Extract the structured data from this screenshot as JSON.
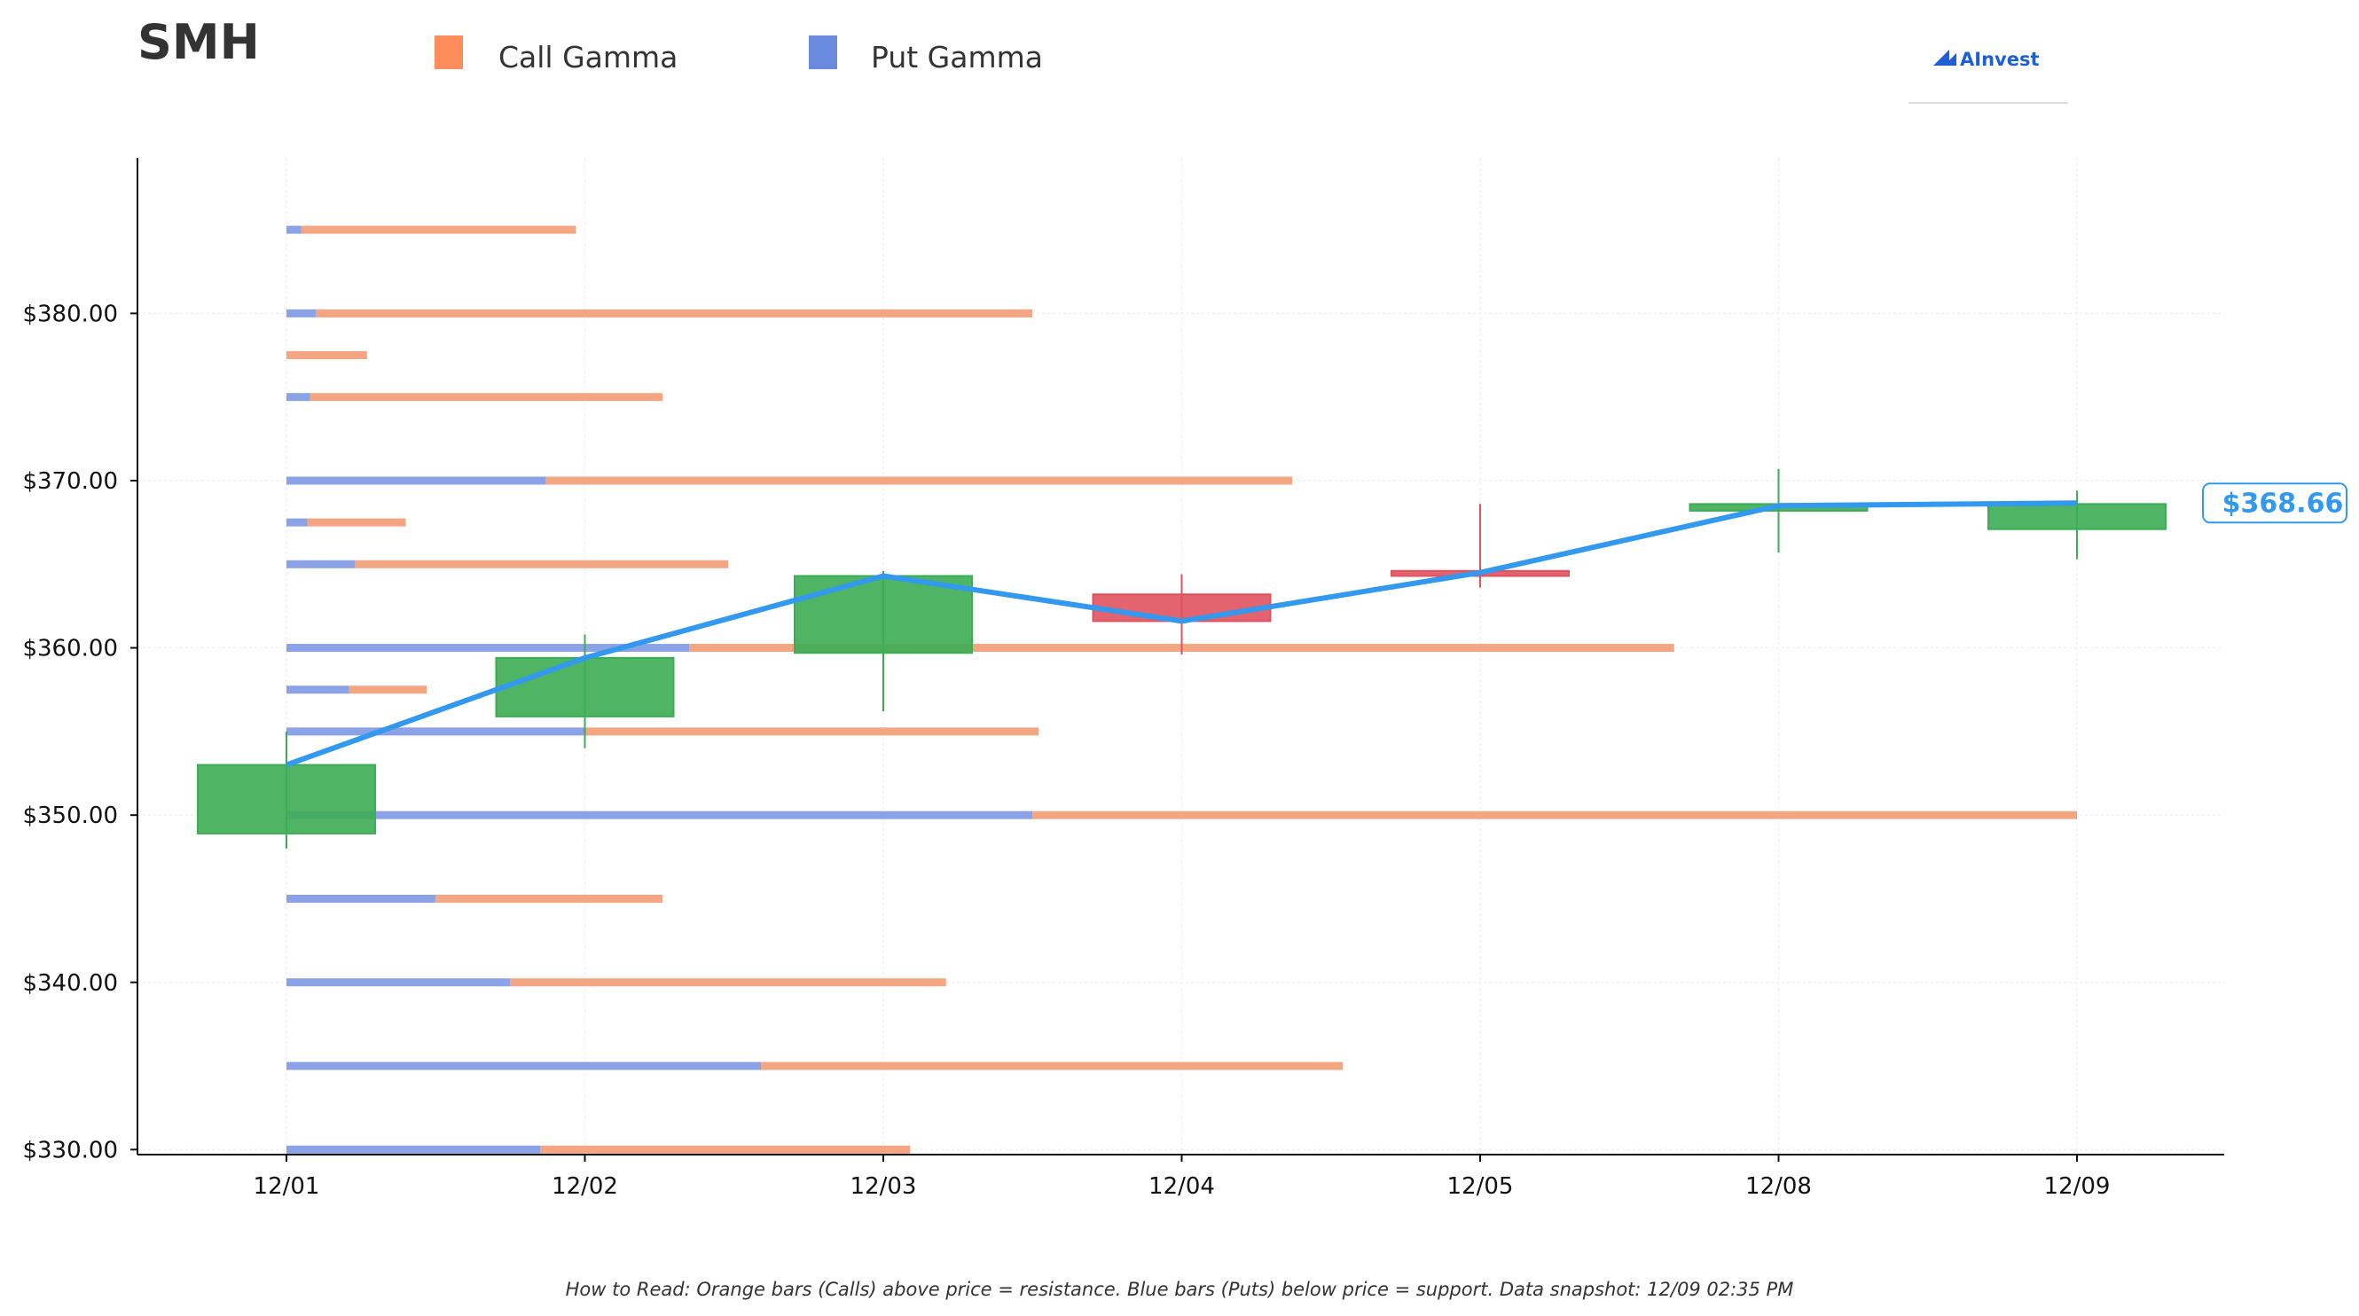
{
  "header": {
    "ticker": "SMH",
    "legend": [
      {
        "label": "Call Gamma",
        "color": "#ff8c5a"
      },
      {
        "label": "Put Gamma",
        "color": "#6b8be0"
      }
    ],
    "brand": "AInvest"
  },
  "footer": {
    "note": "How to Read: Orange bars (Calls) above price = resistance. Blue bars (Puts) below price = support. Data snapshot: 12/09 02:35 PM"
  },
  "colors": {
    "call": "#f4a582",
    "put": "#8ba3e6",
    "up_candle": "#3cad54",
    "down_candle": "#e0525e",
    "price_line": "#3399ee",
    "grid": "#eeeeee"
  },
  "chart_data": {
    "type": "candlestick",
    "title": "",
    "xlabel": "",
    "ylabel": "",
    "x": [
      "12/01",
      "12/02",
      "12/03",
      "12/04",
      "12/05",
      "12/08",
      "12/09"
    ],
    "ylim": [
      329.7,
      389.3
    ],
    "yticks": [
      330,
      340,
      350,
      360,
      370,
      380
    ],
    "ytick_labels": [
      "$330.00",
      "$340.00",
      "$350.00",
      "$360.00",
      "$370.00",
      "$380.00"
    ],
    "grid": true,
    "legend_position": "top",
    "candles": [
      {
        "date": "12/01",
        "open": 348.9,
        "close": 353.0,
        "high": 355.0,
        "low": 348.0
      },
      {
        "date": "12/02",
        "open": 355.9,
        "close": 359.4,
        "high": 360.8,
        "low": 354.0
      },
      {
        "date": "12/03",
        "open": 359.7,
        "close": 364.3,
        "high": 364.6,
        "low": 356.2
      },
      {
        "date": "12/04",
        "open": 363.2,
        "close": 361.6,
        "high": 364.4,
        "low": 359.6
      },
      {
        "date": "12/05",
        "open": 364.6,
        "close": 364.3,
        "high": 368.6,
        "low": 363.6
      },
      {
        "date": "12/08",
        "open": 368.2,
        "close": 368.6,
        "high": 370.7,
        "low": 365.7
      },
      {
        "date": "12/09",
        "open": 367.1,
        "close": 368.6,
        "high": 369.4,
        "low": 365.3
      }
    ],
    "close_line": [
      353.0,
      359.4,
      364.3,
      361.6,
      364.5,
      368.5,
      368.66
    ],
    "last_price_label": "$368.66",
    "gamma_levels": [
      {
        "strike": 385.0,
        "put": 0.05,
        "call": 0.92
      },
      {
        "strike": 380.0,
        "put": 0.1,
        "call": 2.4
      },
      {
        "strike": 377.5,
        "put": 0.0,
        "call": 0.27
      },
      {
        "strike": 375.0,
        "put": 0.08,
        "call": 1.18
      },
      {
        "strike": 370.0,
        "put": 0.87,
        "call": 2.5
      },
      {
        "strike": 367.5,
        "put": 0.07,
        "call": 0.33
      },
      {
        "strike": 365.0,
        "put": 0.23,
        "call": 1.25
      },
      {
        "strike": 360.0,
        "put": 1.35,
        "call": 3.3
      },
      {
        "strike": 357.5,
        "put": 0.21,
        "call": 0.26
      },
      {
        "strike": 355.0,
        "put": 1.0,
        "call": 1.52
      },
      {
        "strike": 350.0,
        "put": 2.5,
        "call": 3.5
      },
      {
        "strike": 345.0,
        "put": 0.5,
        "call": 0.76
      },
      {
        "strike": 340.0,
        "put": 0.75,
        "call": 1.46
      },
      {
        "strike": 335.0,
        "put": 1.59,
        "call": 1.95
      },
      {
        "strike": 330.0,
        "put": 0.85,
        "call": 1.24
      }
    ]
  }
}
